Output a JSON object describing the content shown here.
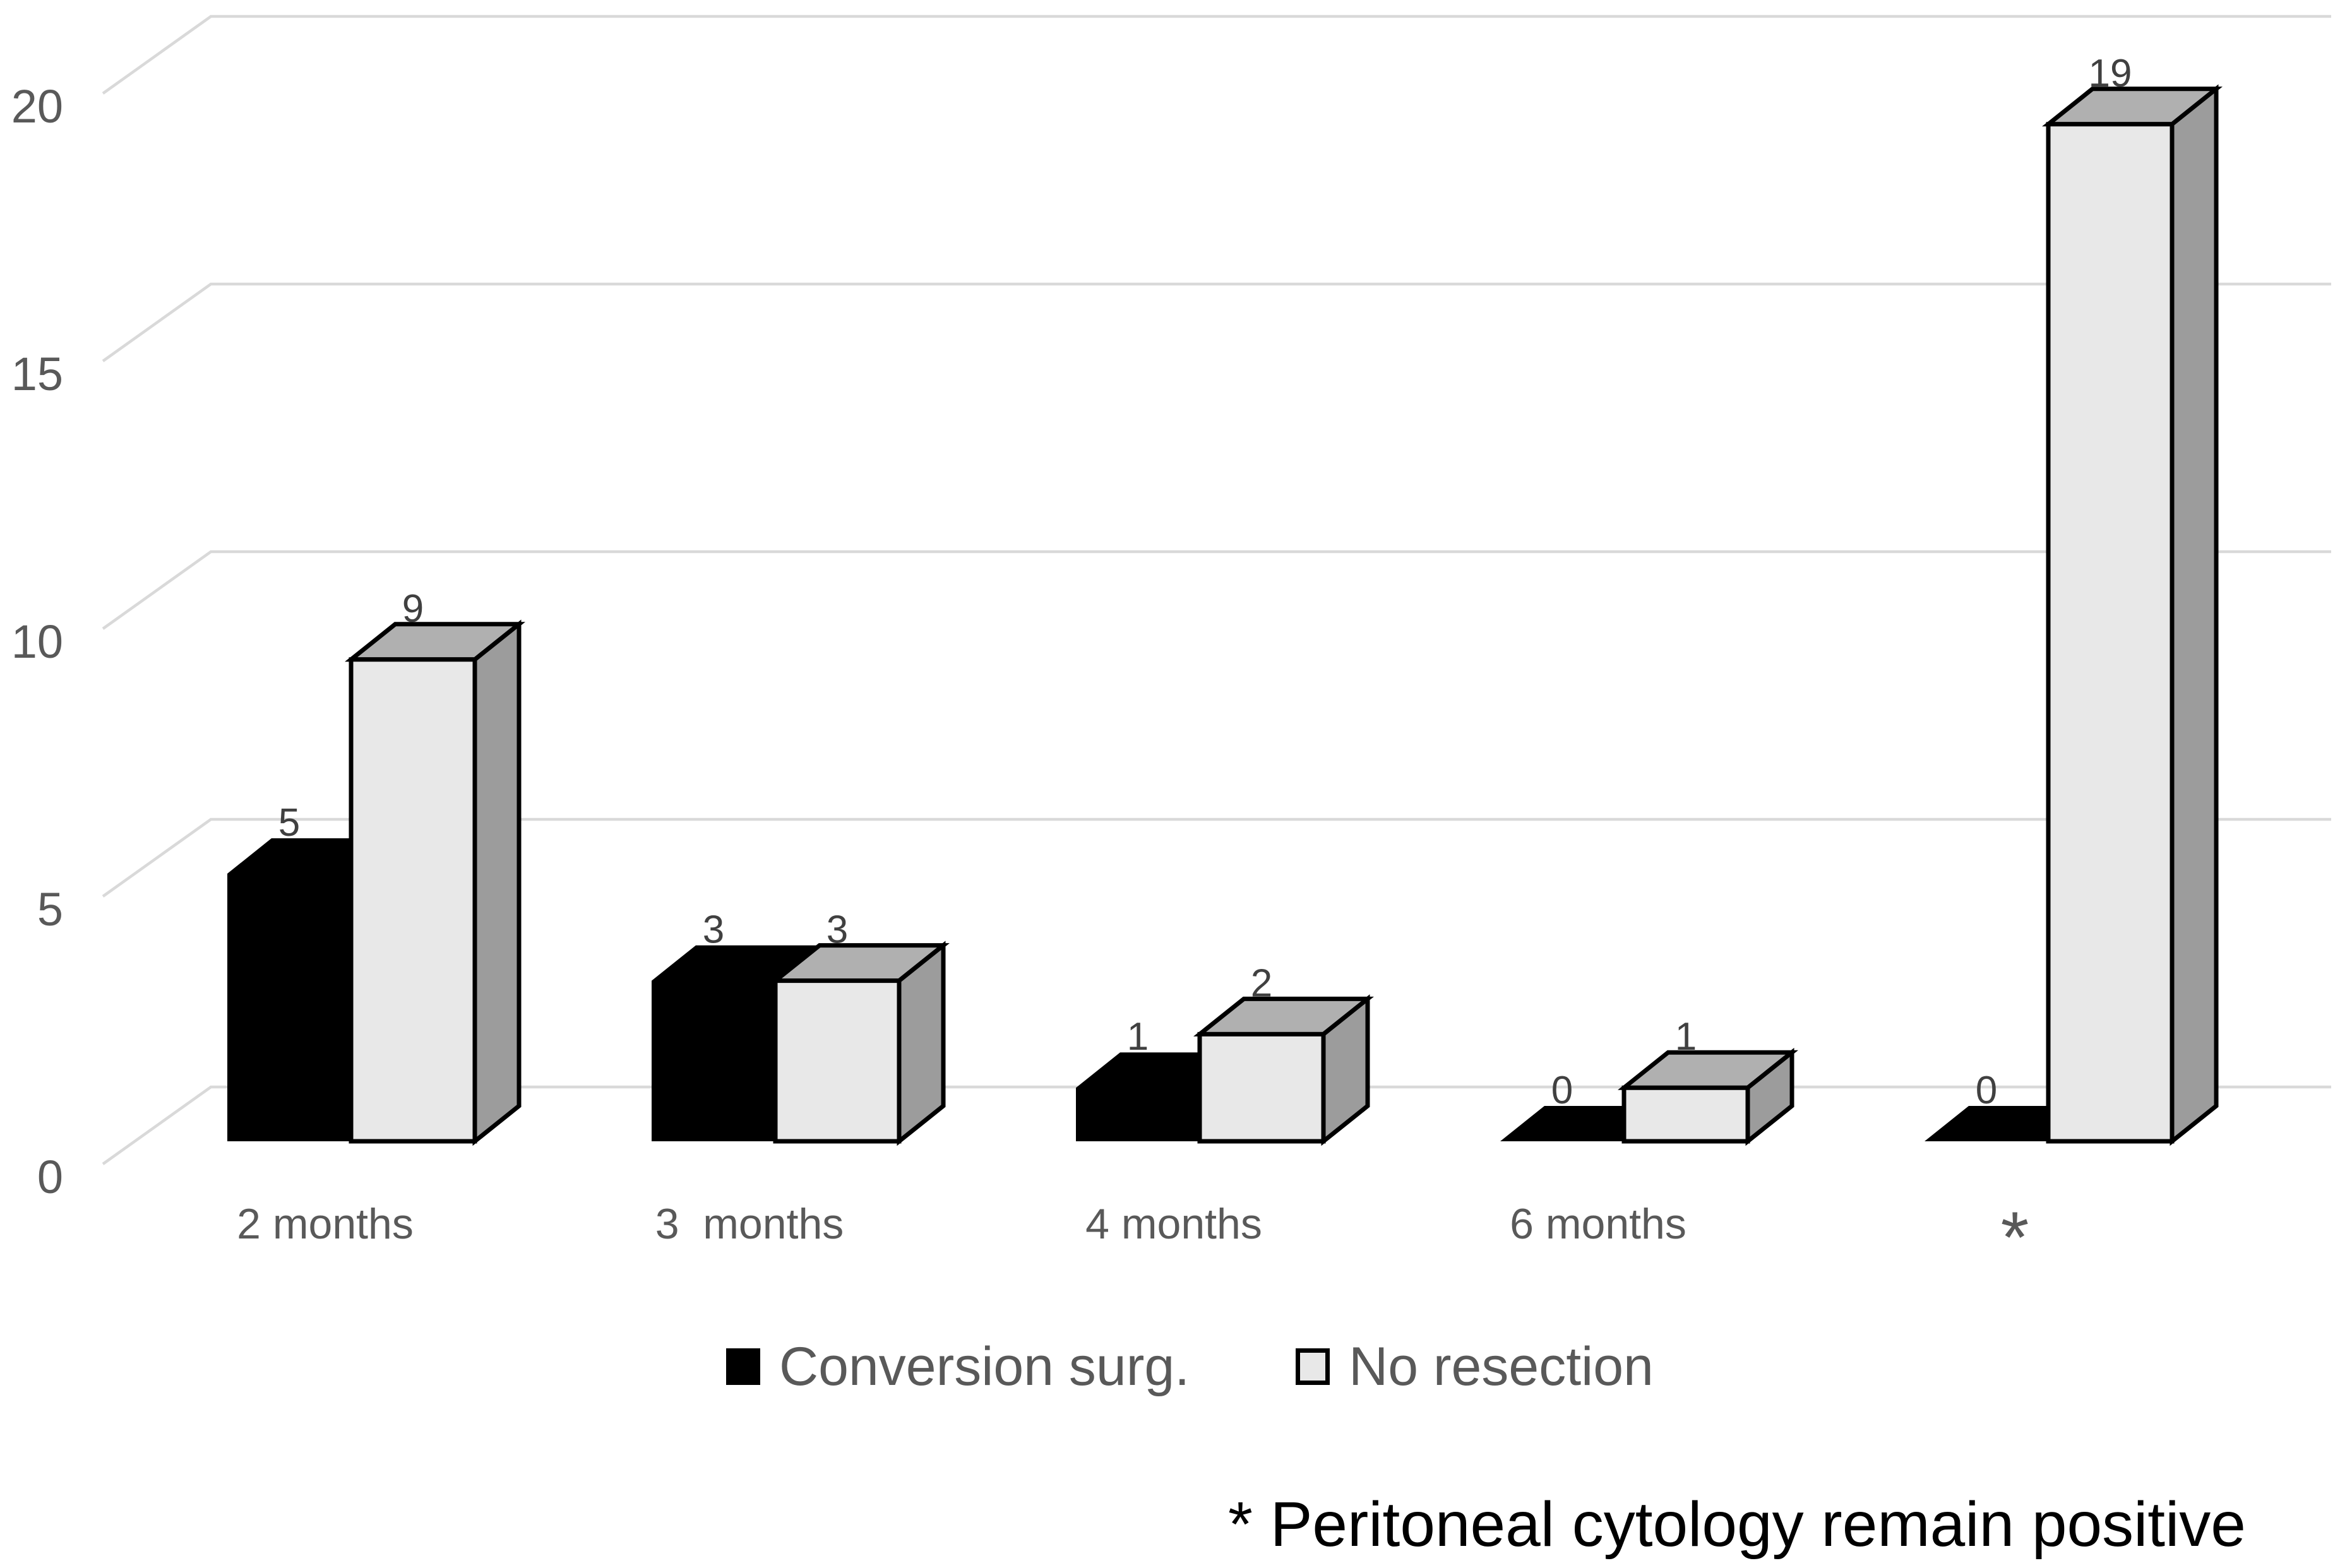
{
  "chart_data": {
    "type": "bar",
    "subtype": "3d-clustered-column",
    "title": "",
    "xlabel": "",
    "ylabel": "",
    "categories": [
      "2 months",
      "3  months",
      "4 months",
      "6 months",
      "*"
    ],
    "series": [
      {
        "name": "Conversion surg.",
        "values": [
          5,
          3,
          1,
          0,
          0
        ],
        "front_color": "#000000",
        "side_color": "#000000",
        "top_color": "#000000",
        "outline": "none"
      },
      {
        "name": "No resection",
        "values": [
          9,
          3,
          2,
          1,
          19
        ],
        "front_color": "#e8e8e8",
        "side_color": "#9c9c9c",
        "top_color": "#b0b0b0",
        "outline": "#000000"
      }
    ],
    "data_labels_shown": true,
    "yticks": [
      0,
      5,
      10,
      15,
      20
    ],
    "ylim": [
      0,
      20
    ],
    "grid": true,
    "legend_position": "bottom",
    "colors": {
      "gridline": "#d9d9d9",
      "axis_label": "#595959",
      "category_label": "#595959",
      "data_label": "#404040"
    }
  },
  "legend": {
    "items": [
      {
        "label": "Conversion surg.",
        "swatch": "black"
      },
      {
        "label": "No resection",
        "swatch": "light"
      }
    ]
  },
  "footnote": "* Peritoneal cytology remain positive"
}
